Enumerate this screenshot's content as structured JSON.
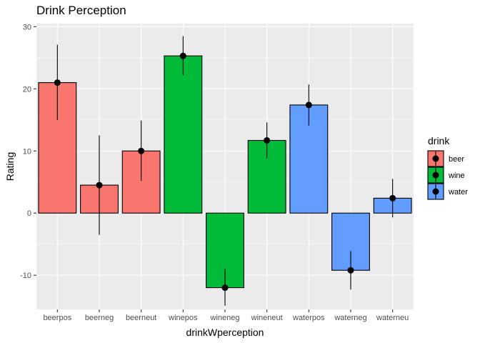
{
  "chart_data": {
    "type": "bar",
    "title": "Drink Perception",
    "xlabel": "drinkWperception",
    "ylabel": "Rating",
    "categories": [
      "beerpos",
      "beerneg",
      "beerneut",
      "winepos",
      "wineneg",
      "wineneut",
      "waterpos",
      "waterneg",
      "waterneu"
    ],
    "values": [
      21.0,
      4.5,
      10.0,
      25.3,
      -12.0,
      11.7,
      17.4,
      -9.2,
      2.4
    ],
    "error_low": [
      15.0,
      -3.5,
      5.2,
      22.2,
      -14.9,
      8.8,
      14.1,
      -12.3,
      -0.7
    ],
    "error_high": [
      27.1,
      12.5,
      14.9,
      28.5,
      -9.0,
      14.6,
      20.7,
      -6.1,
      5.5
    ],
    "groups": [
      "beer",
      "beer",
      "beer",
      "wine",
      "wine",
      "wine",
      "water",
      "water",
      "water"
    ],
    "ylim": [
      -15.5,
      30.5
    ],
    "yticks": [
      -10,
      0,
      10,
      20,
      30
    ],
    "ytick_labels": [
      "-10",
      "0",
      "10",
      "20",
      "30"
    ],
    "grid": true,
    "legend": {
      "title": "drink",
      "position": "right",
      "entries": [
        {
          "label": "beer",
          "color": "#F8766D"
        },
        {
          "label": "wine",
          "color": "#00BA38"
        },
        {
          "label": "water",
          "color": "#619CFF"
        }
      ]
    },
    "colors": {
      "panel_background": "#EBEBEB",
      "grid_major": "#FFFFFF",
      "bar_outline": "#000000",
      "point": "#000000"
    }
  }
}
